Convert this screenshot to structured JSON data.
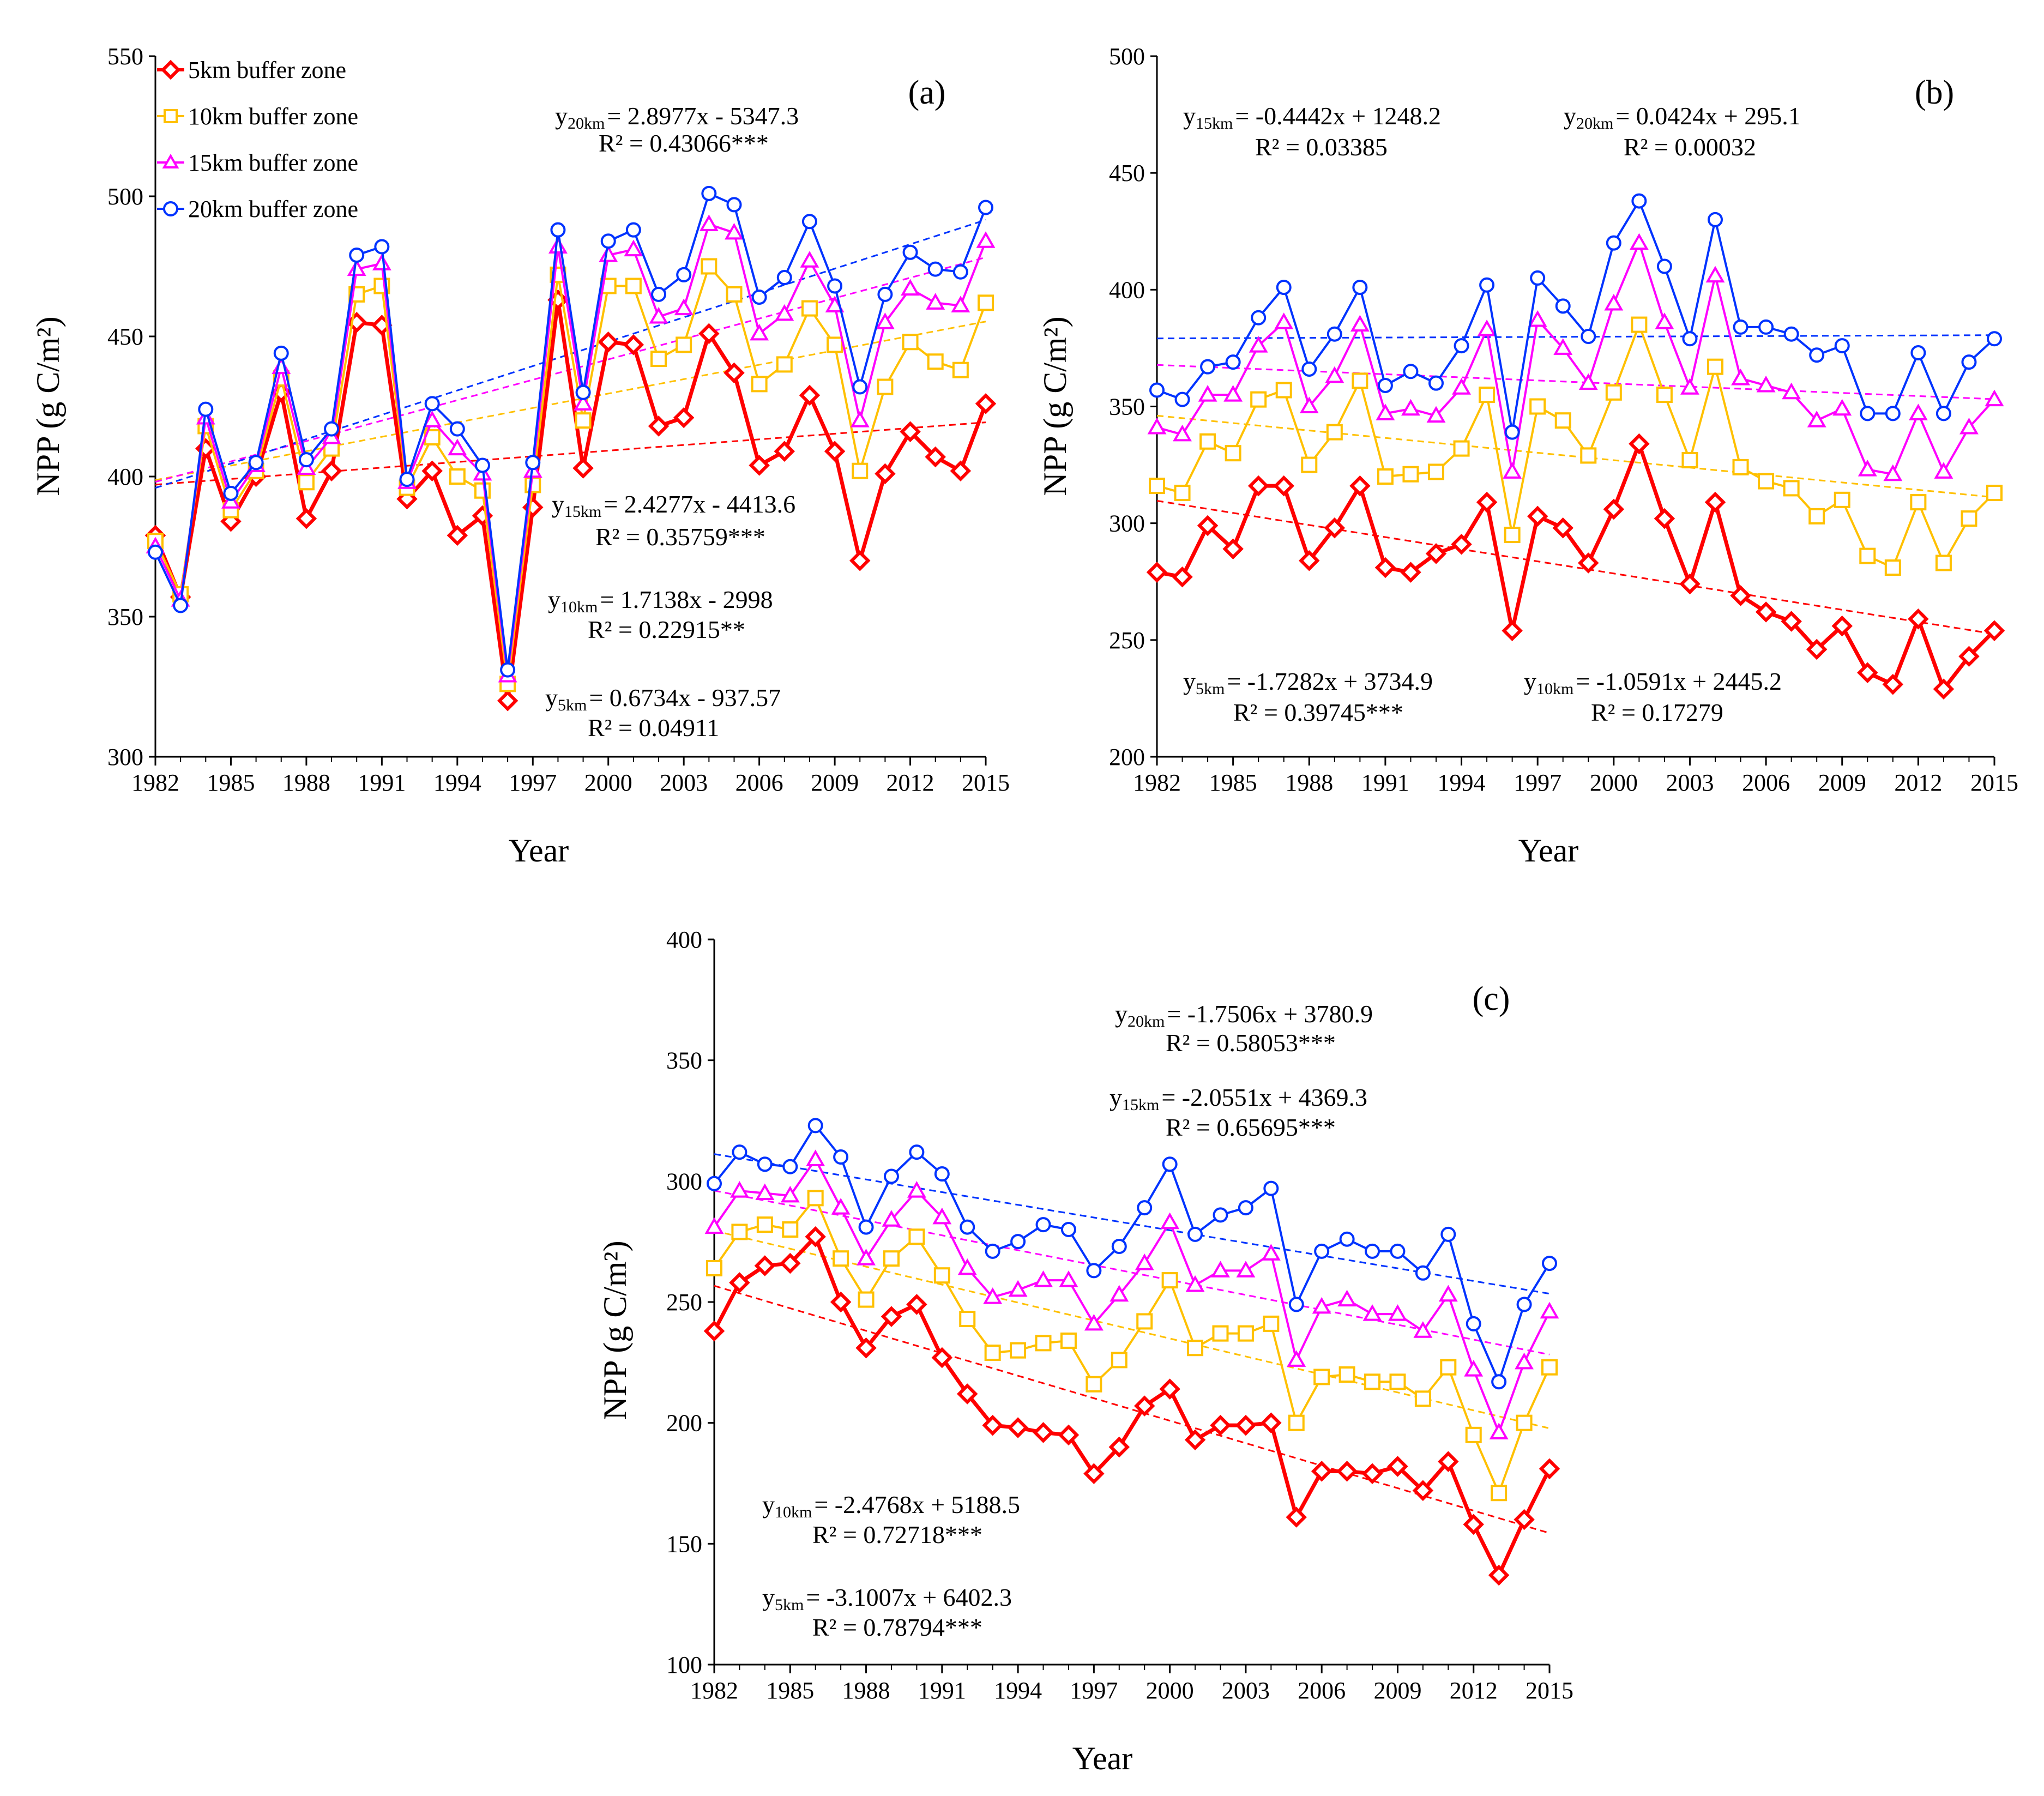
{
  "chart_data": [
    {
      "type": "line",
      "panel_label": "(a)",
      "xlabel": "Year",
      "ylabel": "NPP (g C/m²)",
      "xlim": [
        1982,
        2015
      ],
      "ylim": [
        300,
        550
      ],
      "yticks": [
        300,
        350,
        400,
        450,
        500,
        550
      ],
      "xticks": [
        1982,
        1985,
        1988,
        1991,
        1994,
        1997,
        2000,
        2003,
        2006,
        2009,
        2012,
        2015
      ],
      "legend": {
        "position": "top-left",
        "entries": [
          "5km buffer zone",
          "10km buffer zone",
          "15km buffer zone",
          "20km buffer zone"
        ]
      },
      "x": [
        1982,
        1983,
        1984,
        1985,
        1986,
        1987,
        1988,
        1989,
        1990,
        1991,
        1992,
        1993,
        1994,
        1995,
        1996,
        1997,
        1998,
        1999,
        2000,
        2001,
        2002,
        2003,
        2004,
        2005,
        2006,
        2007,
        2008,
        2009,
        2010,
        2011,
        2012,
        2013,
        2014,
        2015
      ],
      "series": [
        {
          "name": "5km buffer zone",
          "color": "#ff0000",
          "marker": "diamond",
          "values": [
            379,
            357,
            410,
            384,
            400,
            430,
            385,
            402,
            455,
            454,
            392,
            402,
            379,
            386,
            320,
            389,
            463,
            403,
            448,
            447,
            418,
            421,
            451,
            437,
            404,
            409,
            429,
            409,
            370,
            401,
            416,
            407,
            402,
            426
          ],
          "trend": {
            "slope": 0.6734,
            "intercept": -937.57
          }
        },
        {
          "name": "10km buffer zone",
          "color": "#ffc000",
          "marker": "square",
          "values": [
            377,
            358,
            418,
            388,
            402,
            435,
            398,
            410,
            465,
            468,
            396,
            414,
            400,
            395,
            326,
            397,
            472,
            420,
            468,
            468,
            442,
            447,
            475,
            465,
            433,
            440,
            460,
            447,
            402,
            432,
            448,
            441,
            438,
            462
          ],
          "trend": {
            "slope": 1.7138,
            "intercept": -2998
          }
        },
        {
          "name": "15km buffer zone",
          "color": "#ff00ff",
          "marker": "triangle",
          "values": [
            375,
            356,
            421,
            391,
            404,
            439,
            403,
            414,
            474,
            476,
            398,
            420,
            410,
            401,
            329,
            402,
            482,
            426,
            479,
            481,
            457,
            460,
            490,
            487,
            451,
            458,
            477,
            461,
            420,
            455,
            467,
            462,
            461,
            484
          ],
          "trend": {
            "slope": 2.4277,
            "intercept": -4413.6
          }
        },
        {
          "name": "20km buffer zone",
          "color": "#0033ff",
          "marker": "circle",
          "values": [
            373,
            354,
            424,
            394,
            405,
            444,
            406,
            417,
            479,
            482,
            399,
            426,
            417,
            404,
            331,
            405,
            488,
            430,
            484,
            488,
            465,
            472,
            501,
            497,
            464,
            471,
            491,
            468,
            432,
            465,
            480,
            474,
            473,
            496
          ],
          "trend": {
            "slope": 2.8977,
            "intercept": -5347.3
          }
        }
      ],
      "equations": [
        {
          "subscript": "20km",
          "formula": "= 2.8977x - 5347.3",
          "r2": "R² = 0.43066***"
        },
        {
          "subscript": "15km",
          "formula": "= 2.4277x - 4413.6",
          "r2": "R² = 0.35759***"
        },
        {
          "subscript": "10km",
          "formula": "= 1.7138x - 2998",
          "r2": "R² = 0.22915**"
        },
        {
          "subscript": "5km",
          "formula": "= 0.6734x - 937.57",
          "r2": "R² = 0.04911"
        }
      ]
    },
    {
      "type": "line",
      "panel_label": "(b)",
      "xlabel": "Year",
      "ylabel": "NPP (g C/m²)",
      "xlim": [
        1982,
        2015
      ],
      "ylim": [
        200,
        500
      ],
      "yticks": [
        200,
        250,
        300,
        350,
        400,
        450,
        500
      ],
      "xticks": [
        1982,
        1985,
        1988,
        1991,
        1994,
        1997,
        2000,
        2003,
        2006,
        2009,
        2012,
        2015
      ],
      "x": [
        1982,
        1983,
        1984,
        1985,
        1986,
        1987,
        1988,
        1989,
        1990,
        1991,
        1992,
        1993,
        1994,
        1995,
        1996,
        1997,
        1998,
        1999,
        2000,
        2001,
        2002,
        2003,
        2004,
        2005,
        2006,
        2007,
        2008,
        2009,
        2010,
        2011,
        2012,
        2013,
        2014,
        2015
      ],
      "series": [
        {
          "name": "5km buffer zone",
          "color": "#ff0000",
          "marker": "diamond",
          "values": [
            279,
            277,
            299,
            289,
            316,
            316,
            284,
            298,
            316,
            281,
            279,
            287,
            291,
            309,
            254,
            303,
            298,
            283,
            306,
            334,
            302,
            274,
            309,
            269,
            262,
            258,
            246,
            256,
            236,
            231,
            259,
            229,
            243,
            254
          ],
          "trend": {
            "slope": -1.7282,
            "intercept": 3734.9
          }
        },
        {
          "name": "10km buffer zone",
          "color": "#ffc000",
          "marker": "square",
          "values": [
            316,
            313,
            335,
            330,
            353,
            357,
            325,
            339,
            361,
            320,
            321,
            322,
            332,
            355,
            295,
            350,
            344,
            329,
            356,
            385,
            355,
            327,
            367,
            324,
            318,
            315,
            303,
            310,
            286,
            281,
            309,
            283,
            302,
            313
          ],
          "trend": {
            "slope": -1.0591,
            "intercept": 2445.2
          }
        },
        {
          "name": "15km buffer zone",
          "color": "#ff00ff",
          "marker": "triangle",
          "values": [
            341,
            338,
            355,
            355,
            376,
            386,
            350,
            363,
            385,
            347,
            349,
            346,
            358,
            383,
            322,
            387,
            375,
            360,
            394,
            420,
            386,
            358,
            406,
            362,
            359,
            356,
            344,
            349,
            323,
            321,
            347,
            322,
            341,
            353
          ],
          "trend": {
            "slope": -0.4442,
            "intercept": 1248.2
          }
        },
        {
          "name": "20km buffer zone",
          "color": "#0033ff",
          "marker": "circle",
          "values": [
            357,
            353,
            367,
            369,
            388,
            401,
            366,
            381,
            401,
            359,
            365,
            360,
            376,
            402,
            339,
            405,
            393,
            380,
            420,
            438,
            410,
            379,
            430,
            384,
            384,
            381,
            372,
            376,
            347,
            347,
            373,
            347,
            369,
            379
          ],
          "trend": {
            "slope": 0.0424,
            "intercept": 295.1
          }
        }
      ],
      "equations": [
        {
          "subscript": "15km",
          "formula": "= -0.4442x + 1248.2",
          "r2": "R² = 0.03385"
        },
        {
          "subscript": "20km",
          "formula": "= 0.0424x + 295.1",
          "r2": "R² = 0.00032"
        },
        {
          "subscript": "5km",
          "formula": "= -1.7282x + 3734.9",
          "r2": "R² = 0.39745***"
        },
        {
          "subscript": "10km",
          "formula": "= -1.0591x + 2445.2",
          "r2": "R² = 0.17279"
        }
      ]
    },
    {
      "type": "line",
      "panel_label": "(c)",
      "xlabel": "Year",
      "ylabel": "NPP (g C/m²)",
      "xlim": [
        1982,
        2015
      ],
      "ylim": [
        100,
        400
      ],
      "yticks": [
        100,
        150,
        200,
        250,
        300,
        350,
        400
      ],
      "xticks": [
        1982,
        1985,
        1988,
        1991,
        1994,
        1997,
        2000,
        2003,
        2006,
        2009,
        2012,
        2015
      ],
      "x": [
        1982,
        1983,
        1984,
        1985,
        1986,
        1987,
        1988,
        1989,
        1990,
        1991,
        1992,
        1993,
        1994,
        1995,
        1996,
        1997,
        1998,
        1999,
        2000,
        2001,
        2002,
        2003,
        2004,
        2005,
        2006,
        2007,
        2008,
        2009,
        2010,
        2011,
        2012,
        2013,
        2014,
        2015
      ],
      "series": [
        {
          "name": "5km buffer zone",
          "color": "#ff0000",
          "marker": "diamond",
          "values": [
            238,
            258,
            265,
            266,
            277,
            250,
            231,
            244,
            249,
            227,
            212,
            199,
            198,
            196,
            195,
            179,
            190,
            207,
            214,
            193,
            199,
            199,
            200,
            161,
            180,
            180,
            179,
            182,
            172,
            184,
            158,
            137,
            160,
            181
          ],
          "trend": {
            "slope": -3.1007,
            "intercept": 6402.3
          }
        },
        {
          "name": "10km buffer zone",
          "color": "#ffc000",
          "marker": "square",
          "values": [
            264,
            279,
            282,
            280,
            293,
            268,
            251,
            268,
            277,
            261,
            243,
            229,
            230,
            233,
            234,
            216,
            226,
            242,
            259,
            231,
            237,
            237,
            241,
            200,
            219,
            220,
            217,
            217,
            210,
            223,
            195,
            171,
            200,
            223
          ],
          "trend": {
            "slope": -2.4768,
            "intercept": 5188.5
          }
        },
        {
          "name": "15km buffer zone",
          "color": "#ff00ff",
          "marker": "triangle",
          "values": [
            281,
            296,
            295,
            294,
            309,
            289,
            268,
            284,
            296,
            285,
            264,
            252,
            255,
            259,
            259,
            241,
            253,
            266,
            283,
            257,
            263,
            263,
            270,
            226,
            248,
            251,
            245,
            245,
            238,
            253,
            222,
            196,
            225,
            246
          ],
          "trend": {
            "slope": -2.0551,
            "intercept": 4369.3
          }
        },
        {
          "name": "20km buffer zone",
          "color": "#0033ff",
          "marker": "circle",
          "values": [
            299,
            312,
            307,
            306,
            323,
            310,
            281,
            302,
            312,
            303,
            281,
            271,
            275,
            282,
            280,
            263,
            273,
            289,
            307,
            278,
            286,
            289,
            297,
            249,
            271,
            276,
            271,
            271,
            262,
            278,
            241,
            217,
            249,
            266
          ],
          "trend": {
            "slope": -1.7506,
            "intercept": 3780.9
          }
        }
      ],
      "equations": [
        {
          "subscript": "20km",
          "formula": "= -1.7506x + 3780.9",
          "r2": "R² = 0.58053***"
        },
        {
          "subscript": "15km",
          "formula": "= -2.0551x + 4369.3",
          "r2": "R² = 0.65695***"
        },
        {
          "subscript": "10km",
          "formula": "= -2.4768x + 5188.5",
          "r2": "R² = 0.72718***"
        },
        {
          "subscript": "5km",
          "formula": "= -3.1007x + 6402.3",
          "r2": "R² = 0.78794***"
        }
      ]
    }
  ]
}
